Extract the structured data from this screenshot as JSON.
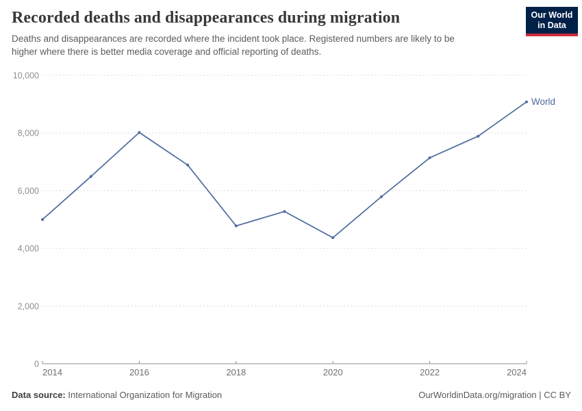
{
  "header": {
    "title": "Recorded deaths and disappearances during migration",
    "subtitle": "Deaths and disappearances are recorded where the incident took place. Registered numbers are likely to be\nhigher where there is better media coverage and official reporting of deaths.",
    "logo": {
      "line1": "Our World",
      "line2": "in Data",
      "bg_color": "#002147",
      "bar_color": "#CE2C3A"
    }
  },
  "chart_data": {
    "type": "line",
    "title": "Recorded deaths and disappearances during migration",
    "x": [
      2014,
      2015,
      2016,
      2017,
      2018,
      2019,
      2020,
      2021,
      2022,
      2023,
      2024
    ],
    "series": [
      {
        "name": "World",
        "color": "#4C6A9C",
        "values": [
          5000,
          6490,
          8020,
          6890,
          4780,
          5280,
          4370,
          5790,
          7140,
          7890,
          9080
        ]
      }
    ],
    "xlabel": "",
    "ylabel": "",
    "ylim": [
      0,
      10000
    ],
    "yticks": [
      0,
      2000,
      4000,
      6000,
      8000,
      10000
    ],
    "ytick_labels": [
      "0",
      "2,000",
      "4,000",
      "6,000",
      "8,000",
      "10,000"
    ],
    "xticks": [
      2014,
      2016,
      2018,
      2020,
      2022,
      2024
    ],
    "grid": "horizontal-dashed",
    "legend_position": "end-of-line-label",
    "entity_label": "World"
  },
  "footer": {
    "datasource_label": "Data source:",
    "datasource_value": "International Organization for Migration",
    "attribution": "OurWorldinData.org/migration | CC BY"
  },
  "colors": {
    "line": "#4C6A9C",
    "grid": "#dedede",
    "axis": "#8f8f8f",
    "ytick_label": "#8f8f8f",
    "xtick_label": "#6f6f6f",
    "title": "#383838",
    "subtitle": "#5c5c5c",
    "footer": "#5a5a5a",
    "logo_bg": "#002147",
    "logo_bar": "#CE2C3A"
  }
}
